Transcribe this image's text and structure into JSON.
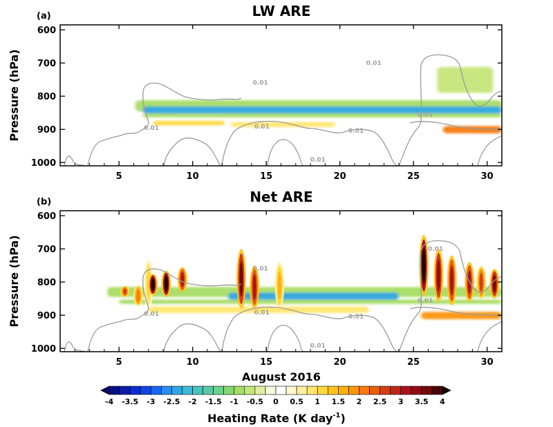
{
  "chart_data": [
    {
      "type": "heatmap",
      "panel_label": "(a)",
      "title": "LW ARE",
      "ylabel": "Pressure (hPa)",
      "xlabel": "",
      "xlim": [
        1,
        31
      ],
      "ylim": [
        1010,
        585
      ],
      "y_reversed": true,
      "xticks": [
        5,
        10,
        15,
        20,
        25,
        30
      ],
      "yticks": [
        600,
        700,
        800,
        900,
        1000
      ],
      "contour_label": "0.01",
      "contour_labels": [
        {
          "day": 22.3,
          "p": 700
        },
        {
          "day": 14.6,
          "p": 759
        },
        {
          "day": 7.2,
          "p": 895
        },
        {
          "day": 14.7,
          "p": 891
        },
        {
          "day": 25.8,
          "p": 856
        },
        {
          "day": 21.1,
          "p": 904
        },
        {
          "day": 18.5,
          "p": 991
        }
      ],
      "bands": [
        {
          "x0": 6.1,
          "x1": 31,
          "p0": 812,
          "p1": 846,
          "value": -1.0
        },
        {
          "x0": 6.6,
          "x1": 31,
          "p0": 831,
          "p1": 853,
          "value": -2.4
        },
        {
          "x0": 6.6,
          "x1": 31,
          "p0": 852,
          "p1": 864,
          "value": -0.8
        },
        {
          "x0": 7.3,
          "x1": 12.2,
          "p0": 874,
          "p1": 888,
          "value": 1.0
        },
        {
          "x0": 12.6,
          "x1": 19.7,
          "p0": 878,
          "p1": 893,
          "value": 0.8
        },
        {
          "x0": 27,
          "x1": 31,
          "p0": 890,
          "p1": 912,
          "value": 2.0
        },
        {
          "x0": 26.6,
          "x1": 30.4,
          "p0": 712,
          "p1": 790,
          "value": -0.6
        }
      ]
    },
    {
      "type": "heatmap",
      "panel_label": "(b)",
      "title": "Net ARE",
      "ylabel": "Pressure (hPa)",
      "xlabel": "August 2016",
      "xlim": [
        1,
        31
      ],
      "ylim": [
        1010,
        585
      ],
      "y_reversed": true,
      "xticks": [
        5,
        10,
        15,
        20,
        25,
        30
      ],
      "yticks": [
        600,
        700,
        800,
        900,
        1000
      ],
      "contour_label": "0.01",
      "contour_labels": [
        {
          "day": 26.5,
          "p": 700
        },
        {
          "day": 14.6,
          "p": 759
        },
        {
          "day": 7.2,
          "p": 895
        },
        {
          "day": 14.7,
          "p": 891
        },
        {
          "day": 25.8,
          "p": 856
        },
        {
          "day": 21.1,
          "p": 904
        },
        {
          "day": 18.5,
          "p": 991
        }
      ],
      "bands": [
        {
          "x0": 4.2,
          "x1": 31,
          "p0": 815,
          "p1": 845,
          "value": -0.9
        },
        {
          "x0": 12.4,
          "x1": 24,
          "p0": 832,
          "p1": 854,
          "value": -2.3
        },
        {
          "x0": 5,
          "x1": 31,
          "p0": 853,
          "p1": 866,
          "value": -0.8
        },
        {
          "x0": 7,
          "x1": 22,
          "p0": 874,
          "p1": 893,
          "value": 0.9
        },
        {
          "x0": 25.5,
          "x1": 31,
          "p0": 890,
          "p1": 912,
          "value": 1.8
        }
      ],
      "columns": [
        {
          "day": 5.4,
          "p0": 812,
          "p1": 845,
          "value": 2.6
        },
        {
          "day": 6.3,
          "p0": 810,
          "p1": 872,
          "value": 2.2
        },
        {
          "day": 7.0,
          "p0": 730,
          "p1": 880,
          "value": 1.0
        },
        {
          "day": 7.3,
          "p0": 775,
          "p1": 840,
          "value": 4.0
        },
        {
          "day": 8.2,
          "p0": 765,
          "p1": 845,
          "value": 4.0
        },
        {
          "day": 9.3,
          "p0": 755,
          "p1": 830,
          "value": 3.2
        },
        {
          "day": 13.3,
          "p0": 700,
          "p1": 880,
          "value": 3.6
        },
        {
          "day": 14.2,
          "p0": 750,
          "p1": 880,
          "value": 3.0
        },
        {
          "day": 15.9,
          "p0": 740,
          "p1": 880,
          "value": 1.6
        },
        {
          "day": 25.7,
          "p0": 658,
          "p1": 842,
          "value": 4.0
        },
        {
          "day": 26.7,
          "p0": 700,
          "p1": 860,
          "value": 3.4
        },
        {
          "day": 27.6,
          "p0": 720,
          "p1": 870,
          "value": 3.0
        },
        {
          "day": 28.8,
          "p0": 740,
          "p1": 860,
          "value": 3.2
        },
        {
          "day": 29.6,
          "p0": 752,
          "p1": 850,
          "value": 2.6
        },
        {
          "day": 30.5,
          "p0": 760,
          "p1": 850,
          "value": 3.6
        }
      ]
    }
  ],
  "colorbar": {
    "title": "Heating Rate (K day",
    "title_sup": "-1",
    "title_close": ")",
    "tick_labels": [
      "-4",
      "-3.5",
      "-3",
      "-2.5",
      "-2",
      "-1.5",
      "-1",
      "-0.5",
      "0",
      "0.5",
      "1",
      "1.5",
      "2",
      "2.5",
      "3",
      "3.5",
      "4"
    ],
    "levels": [
      -4,
      -3.75,
      -3.5,
      -3.25,
      -3,
      -2.75,
      -2.5,
      -2.25,
      -2,
      -1.75,
      -1.5,
      -1.25,
      -1,
      -0.75,
      -0.5,
      -0.25,
      0,
      0.25,
      0.5,
      0.75,
      1,
      1.25,
      1.5,
      1.75,
      2,
      2.25,
      2.5,
      2.75,
      3,
      3.25,
      3.5,
      3.75,
      4
    ],
    "colors": [
      "#0a0f82",
      "#0c1ca8",
      "#0a2cd0",
      "#0e44e8",
      "#1a66f0",
      "#2a8cf0",
      "#30a6e6",
      "#3cbad6",
      "#46c4c0",
      "#5acaa6",
      "#6ed08c",
      "#86d674",
      "#a6dc64",
      "#c6e678",
      "#def0a0",
      "#f4f8dc",
      "#ffffff",
      "#fff8d0",
      "#fff0a0",
      "#ffe66e",
      "#ffd840",
      "#ffc41a",
      "#ffae10",
      "#ff960a",
      "#f77a0a",
      "#e85e0a",
      "#d43e10",
      "#c02618",
      "#a8141c",
      "#8e0e14",
      "#720a0e",
      "#4a0606"
    ],
    "under_color": "#0a0a6a",
    "over_color": "#1a0202"
  }
}
